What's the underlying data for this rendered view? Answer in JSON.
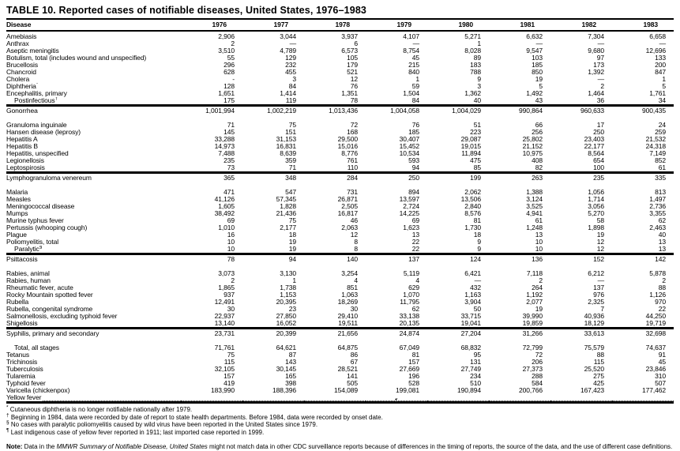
{
  "colors": {
    "ink": "#000000",
    "paper": "#ffffff"
  },
  "title": "TABLE 10. Reported cases of notifiable diseases, United States, 1976–1983",
  "table": {
    "columns": [
      "Disease",
      "1976",
      "1977",
      "1978",
      "1979",
      "1980",
      "1981",
      "1982",
      "1983"
    ],
    "rows": [
      {
        "label": "Amebiasis",
        "first": true,
        "v": [
          "2,906",
          "3,044",
          "3,937",
          "4,107",
          "5,271",
          "6,632",
          "7,304",
          "6,658"
        ]
      },
      {
        "label": "Anthrax",
        "v": [
          "2",
          "—",
          "6",
          "—",
          "1",
          "—",
          "—",
          "—"
        ]
      },
      {
        "label": "Aseptic meningitis",
        "v": [
          "3,510",
          "4,789",
          "6,573",
          "8,754",
          "8,028",
          "9,547",
          "9,680",
          "12,696"
        ]
      },
      {
        "label": "Botulism, total (includes wound and unspecified)",
        "v": [
          "55",
          "129",
          "105",
          "45",
          "89",
          "103",
          "97",
          "133"
        ]
      },
      {
        "label": "Brucellosis",
        "v": [
          "296",
          "232",
          "179",
          "215",
          "183",
          "185",
          "173",
          "200"
        ]
      },
      {
        "label": "Chancroid",
        "v": [
          "628",
          "455",
          "521",
          "840",
          "788",
          "850",
          "1,392",
          "847"
        ]
      },
      {
        "label": "Cholera",
        "v": [
          "-",
          "3",
          "12",
          "1",
          "9",
          "19",
          "—",
          "1"
        ]
      },
      {
        "label": "Diphtheria",
        "sup": "*",
        "v": [
          "128",
          "84",
          "76",
          "59",
          "3",
          "5",
          "2",
          "5"
        ]
      },
      {
        "label": "Encephalitis, primary",
        "v": [
          "1,651",
          "1,414",
          "1,351",
          "1,504",
          "1,362",
          "1,492",
          "1,464",
          "1,761"
        ]
      },
      {
        "label": "Postinfectious",
        "sup": "†",
        "indent": true,
        "v": [
          "175",
          "119",
          "78",
          "84",
          "40",
          "43",
          "36",
          "34"
        ]
      },
      {
        "label": "Gonorrhea",
        "section": true,
        "gap_after": true,
        "v": [
          "1,001,994",
          "1,002,219",
          "1,013,436",
          "1,004,058",
          "1,004,029",
          "990,864",
          "960,633",
          "900,435"
        ]
      },
      {
        "label": "Granuloma inguinale",
        "v": [
          "71",
          "75",
          "72",
          "76",
          "51",
          "66",
          "17",
          "24"
        ]
      },
      {
        "label": "Hansen disease (leprosy)",
        "v": [
          "145",
          "151",
          "168",
          "185",
          "223",
          "256",
          "250",
          "259"
        ]
      },
      {
        "label": "Hepatitis A",
        "v": [
          "33,288",
          "31,153",
          "29,500",
          "30,407",
          "29,087",
          "25,802",
          "23,403",
          "21,532"
        ]
      },
      {
        "label": "Hepatitis B",
        "v": [
          "14,973",
          "16,831",
          "15,016",
          "15,452",
          "19,015",
          "21,152",
          "22,177",
          "24,318"
        ]
      },
      {
        "label": "Hepatitis, unspecified",
        "v": [
          "7,488",
          "8,639",
          "8,776",
          "10,534",
          "11,894",
          "10,975",
          "8,564",
          "7,149"
        ]
      },
      {
        "label": "Legionellosis",
        "v": [
          "235",
          "359",
          "761",
          "593",
          "475",
          "408",
          "654",
          "852"
        ]
      },
      {
        "label": "Leptospirosis",
        "v": [
          "73",
          "71",
          "110",
          "94",
          "85",
          "82",
          "100",
          "61"
        ]
      },
      {
        "label": "Lymphogranuloma venereum",
        "section": true,
        "gap_after": true,
        "v": [
          "365",
          "348",
          "284",
          "250",
          "199",
          "263",
          "235",
          "335"
        ]
      },
      {
        "label": "Malaria",
        "v": [
          "471",
          "547",
          "731",
          "894",
          "2,062",
          "1,388",
          "1,056",
          "813"
        ]
      },
      {
        "label": "Measles",
        "v": [
          "41,126",
          "57,345",
          "26,871",
          "13,597",
          "13,506",
          "3,124",
          "1,714",
          "1,497"
        ]
      },
      {
        "label": "Meningococcal disease",
        "v": [
          "1,605",
          "1,828",
          "2,505",
          "2,724",
          "2,840",
          "3,525",
          "3,056",
          "2,736"
        ]
      },
      {
        "label": "Mumps",
        "v": [
          "38,492",
          "21,436",
          "16,817",
          "14,225",
          "8,576",
          "4,941",
          "5,270",
          "3,355"
        ]
      },
      {
        "label": "Murine typhus fever",
        "v": [
          "69",
          "75",
          "46",
          "69",
          "81",
          "61",
          "58",
          "62"
        ]
      },
      {
        "label": "Pertussis (whooping cough)",
        "v": [
          "1,010",
          "2,177",
          "2,063",
          "1,623",
          "1,730",
          "1,248",
          "1,898",
          "2,463"
        ]
      },
      {
        "label": "Plague",
        "v": [
          "16",
          "18",
          "12",
          "13",
          "18",
          "13",
          "19",
          "40"
        ]
      },
      {
        "label": "Poliomyelitis, total",
        "v": [
          "10",
          "19",
          "8",
          "22",
          "9",
          "10",
          "12",
          "13"
        ]
      },
      {
        "label": "Paralytic",
        "sup": "§",
        "indent": true,
        "v": [
          "10",
          "19",
          "8",
          "22",
          "9",
          "10",
          "12",
          "13"
        ]
      },
      {
        "label": "Psittacosis",
        "section": true,
        "gap_after": true,
        "v": [
          "78",
          "94",
          "140",
          "137",
          "124",
          "136",
          "152",
          "142"
        ]
      },
      {
        "label": "Rabies, animal",
        "v": [
          "3,073",
          "3,130",
          "3,254",
          "5,119",
          "6,421",
          "7,118",
          "6,212",
          "5,878"
        ]
      },
      {
        "label": "Rabies, human",
        "v": [
          "2",
          "1",
          "4",
          "4",
          "—",
          "2",
          "—",
          "2"
        ]
      },
      {
        "label": "Rheumatic fever, acute",
        "v": [
          "1,865",
          "1,738",
          "851",
          "629",
          "432",
          "264",
          "137",
          "88"
        ]
      },
      {
        "label": "Rocky Mountain spotted fever",
        "v": [
          "937",
          "1,153",
          "1,063",
          "1,070",
          "1,163",
          "1,192",
          "976",
          "1,126"
        ]
      },
      {
        "label": "Rubella",
        "v": [
          "12,491",
          "20,395",
          "18,269",
          "11,795",
          "3,904",
          "2,077",
          "2,325",
          "970"
        ]
      },
      {
        "label": "Rubella, congenital syndrome",
        "v": [
          "30",
          "23",
          "30",
          "62",
          "50",
          "19",
          "7",
          "22"
        ]
      },
      {
        "label": "Salmonellosis, excluding typhoid fever",
        "v": [
          "22,937",
          "27,850",
          "29,410",
          "33,138",
          "33,715",
          "39,990",
          "40,936",
          "44,250"
        ]
      },
      {
        "label": "Shigellosis",
        "v": [
          "13,140",
          "16,052",
          "19,511",
          "20,135",
          "19,041",
          "19,859",
          "18,129",
          "19,719"
        ]
      },
      {
        "label": "Syphilis, primary and secondary",
        "section": true,
        "gap_after": true,
        "v": [
          "23,731",
          "20,399",
          "21,656",
          "24,874",
          "27,204",
          "31,266",
          "33,613",
          "32,698"
        ]
      },
      {
        "label": "Total, all stages",
        "indent": true,
        "v": [
          "71,761",
          "64,621",
          "64,875",
          "67,049",
          "68,832",
          "72,799",
          "75,579",
          "74,637"
        ]
      },
      {
        "label": "Tetanus",
        "v": [
          "75",
          "87",
          "86",
          "81",
          "95",
          "72",
          "88",
          "91"
        ]
      },
      {
        "label": "Trichinosis",
        "v": [
          "115",
          "143",
          "67",
          "157",
          "131",
          "206",
          "115",
          "45"
        ]
      },
      {
        "label": "Tuberculosis",
        "v": [
          "32,105",
          "30,145",
          "28,521",
          "27,669",
          "27,749",
          "27,373",
          "25,520",
          "23,846"
        ]
      },
      {
        "label": "Tularemia",
        "v": [
          "157",
          "165",
          "141",
          "196",
          "234",
          "288",
          "275",
          "310"
        ]
      },
      {
        "label": "Typhoid fever",
        "v": [
          "419",
          "398",
          "505",
          "528",
          "510",
          "584",
          "425",
          "507"
        ]
      },
      {
        "label": "Varicella (chickenpox)",
        "v": [
          "183,990",
          "188,396",
          "154,089",
          "199,081",
          "190,894",
          "200,766",
          "167,423",
          "177,462"
        ]
      },
      {
        "label": "Yellow fever",
        "dotted": true,
        "bottom": true,
        "v": [
          "",
          "",
          "",
          "¶",
          "",
          "",
          "",
          ""
        ]
      }
    ]
  },
  "footnotes": [
    {
      "marker": "*",
      "text": "Cutaneous diphtheria is no longer notifiable nationally after 1979."
    },
    {
      "marker": "†",
      "text": "Beginning in 1984, data were recorded by date of report to state health departments. Before 1984, data were recorded by onset date."
    },
    {
      "marker": "§",
      "text": "No cases with paralytic poliomyelitis caused by wild virus have been reported in the United States since 1979."
    },
    {
      "marker": "¶",
      "text": "Last indigenous case of yellow fever reported in 1911; last imported case reported in 1999."
    }
  ],
  "note": {
    "label": "Note:",
    "pre": " Data in the ",
    "italic": "MMWR Summary of Notifiable Disease, United States",
    "post": " might not match data in other CDC surveillance reports because of differences in the timing of reports, the source of the data, and the use of different case definitions."
  }
}
